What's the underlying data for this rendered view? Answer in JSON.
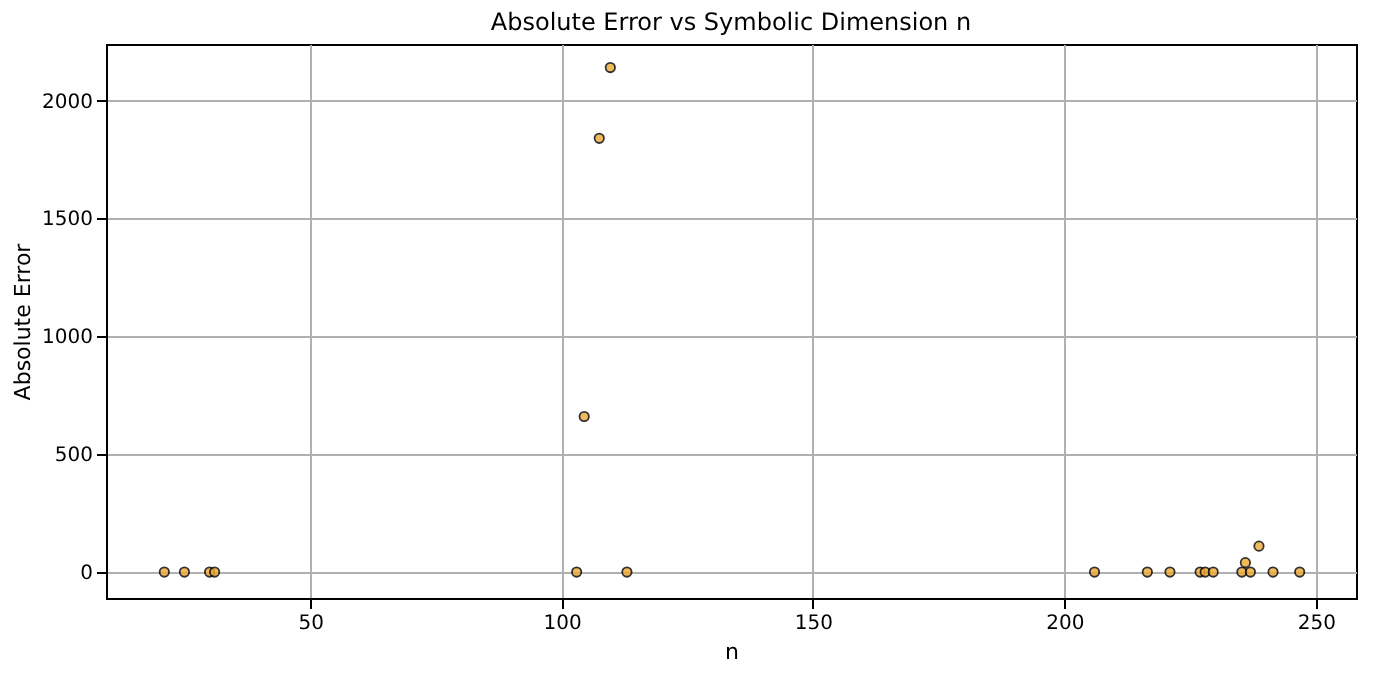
{
  "chart_data": {
    "type": "scatter",
    "title": "Absolute Error vs Symbolic Dimension n",
    "xlabel": "n",
    "ylabel": "Absolute Error",
    "x": [
      21,
      25,
      30,
      31,
      103,
      104.5,
      107.5,
      109.7,
      113,
      206,
      216.5,
      221,
      227,
      228,
      229.6,
      235.3,
      236,
      237,
      238.7,
      241.5,
      246.8
    ],
    "series": [
      {
        "color": "#f0a830",
        "values": [
          0,
          0,
          0,
          0,
          0,
          660,
          1840,
          2140,
          0,
          0,
          0,
          0,
          0,
          0,
          0,
          0,
          40,
          0,
          110,
          0,
          0
        ]
      }
    ],
    "xlim": [
      9.4,
      258
    ],
    "xticks": [
      50,
      100,
      150,
      200,
      250
    ],
    "ylim": [
      -110,
      2240
    ],
    "yticks": [
      0,
      500,
      1000,
      1500,
      2000
    ],
    "grid": true,
    "marker": "circle"
  }
}
